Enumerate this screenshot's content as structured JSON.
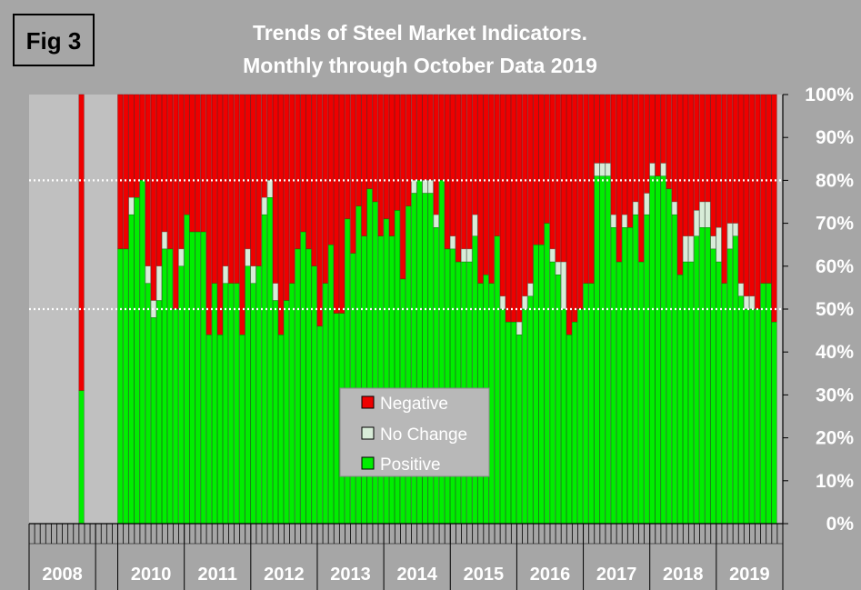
{
  "figure_label": "Fig 3",
  "colors": {
    "background": "#a6a6a6",
    "positive": "#00ee00",
    "no_change": "#d8ecd8",
    "negative": "#ee0000",
    "gap": "#c0c0c0",
    "reference_line": "#ffffff"
  },
  "chart_data": {
    "type": "bar",
    "stacked": true,
    "title": "Trends of Steel Market Indicators.",
    "subtitle": "Monthly through October Data  2019",
    "xlabel": "",
    "ylabel": "",
    "ylim": [
      0,
      100
    ],
    "y_ticks": [
      "0%",
      "10%",
      "20%",
      "30%",
      "40%",
      "50%",
      "60%",
      "70%",
      "80%",
      "90%",
      "100%"
    ],
    "reference_lines": [
      50,
      80
    ],
    "legend": {
      "position": "center",
      "entries": [
        "Negative",
        "No Change",
        "Positive"
      ]
    },
    "year_labels": [
      "2008",
      "2010",
      "2011",
      "2012",
      "2013",
      "2014",
      "2015",
      "2016",
      "2017",
      "2018",
      "2019"
    ],
    "series_names": [
      "Positive",
      "No Change",
      "Negative"
    ],
    "groups": [
      {
        "label": "2008",
        "slots": 12,
        "bars": [
          {
            "slot": 9,
            "positive": 31,
            "no_change": 0
          }
        ]
      },
      {
        "label": "2010",
        "slots": 12,
        "gap_before": 4,
        "positive": [
          64,
          64,
          72,
          76,
          80,
          56,
          48,
          52,
          64,
          64,
          50,
          60
        ],
        "no_change": [
          0,
          0,
          4,
          0,
          0,
          4,
          4,
          8,
          4,
          0,
          0,
          4
        ]
      },
      {
        "label": "2011",
        "slots": 12,
        "positive": [
          72,
          68,
          68,
          68,
          44,
          56,
          44,
          56,
          56,
          56,
          44,
          60
        ],
        "no_change": [
          0,
          0,
          0,
          0,
          0,
          0,
          0,
          4,
          0,
          0,
          0,
          4
        ]
      },
      {
        "label": "2012",
        "slots": 12,
        "positive": [
          56,
          60,
          72,
          76,
          52,
          44,
          52,
          56,
          64,
          68,
          64,
          60
        ],
        "no_change": [
          4,
          0,
          4,
          4,
          4,
          0,
          0,
          0,
          0,
          0,
          0,
          0
        ]
      },
      {
        "label": "2013",
        "slots": 12,
        "positive": [
          46,
          56,
          65,
          49,
          49,
          71,
          63,
          74,
          67,
          78,
          75,
          67
        ],
        "no_change": [
          0,
          0,
          0,
          0,
          0,
          0,
          0,
          0,
          0,
          0,
          0,
          0
        ]
      },
      {
        "label": "2014",
        "slots": 12,
        "positive": [
          71,
          67,
          73,
          57,
          74,
          77,
          80,
          77,
          77,
          69,
          80,
          64
        ],
        "no_change": [
          0,
          0,
          0,
          0,
          0,
          3,
          0,
          3,
          3,
          3,
          0,
          0
        ]
      },
      {
        "label": "2015",
        "slots": 12,
        "positive": [
          64,
          61,
          61,
          61,
          67,
          56,
          58,
          56,
          67,
          50,
          47,
          47
        ],
        "no_change": [
          3,
          0,
          3,
          3,
          5,
          0,
          0,
          0,
          0,
          3,
          0,
          0
        ]
      },
      {
        "label": "2016",
        "slots": 12,
        "positive": [
          44,
          50,
          53,
          65,
          65,
          70,
          61,
          58,
          50,
          44,
          47,
          50
        ],
        "no_change": [
          3,
          3,
          3,
          0,
          0,
          0,
          3,
          3,
          11,
          0,
          0,
          0
        ]
      },
      {
        "label": "2017",
        "slots": 12,
        "positive": [
          56,
          56,
          81,
          81,
          81,
          69,
          61,
          69,
          69,
          72,
          61,
          72
        ],
        "no_change": [
          0,
          0,
          3,
          3,
          3,
          3,
          0,
          3,
          0,
          3,
          0,
          5
        ]
      },
      {
        "label": "2018",
        "slots": 12,
        "positive": [
          81,
          81,
          81,
          78,
          72,
          58,
          61,
          61,
          67,
          69,
          69,
          64
        ],
        "no_change": [
          3,
          0,
          3,
          0,
          3,
          0,
          6,
          6,
          6,
          6,
          6,
          3
        ]
      },
      {
        "label": "2019",
        "slots": 12,
        "positive": [
          61,
          56,
          64,
          67,
          53,
          50,
          50,
          50,
          56,
          56,
          47
        ],
        "no_change": [
          8,
          0,
          6,
          3,
          3,
          3,
          3,
          0,
          0,
          0,
          0
        ]
      }
    ]
  }
}
